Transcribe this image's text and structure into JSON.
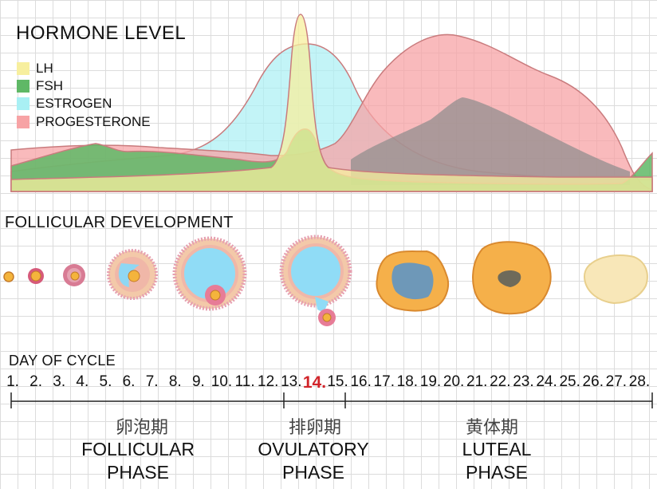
{
  "hormone_chart": {
    "title": "HORMONE LEVEL",
    "legend": [
      {
        "label": "LH",
        "color": "#f7ef9e"
      },
      {
        "label": "FSH",
        "color": "#5fb866"
      },
      {
        "label": "ESTROGEN",
        "color": "#a9f0f4"
      },
      {
        "label": "PROGESTERONE",
        "color": "#f7a3a5"
      }
    ]
  },
  "follicular_development": {
    "title": "FOLLICULAR DEVELOPMENT"
  },
  "day_of_cycle": {
    "title": "DAY OF CYCLE",
    "days": [
      "1.",
      "2.",
      "3.",
      "4.",
      "5.",
      "6.",
      "7.",
      "8.",
      "9.",
      "10.",
      "11.",
      "12.",
      "13.",
      "14.",
      "15.",
      "16.",
      "17.",
      "18.",
      "19.",
      "20.",
      "21.",
      "22.",
      "23.",
      "24.",
      "25.",
      "26.",
      "27.",
      "28."
    ],
    "highlight_day": "14."
  },
  "phases": [
    {
      "label_cn": "卵泡期",
      "label_en_line1": "FOLLICULAR",
      "label_en_line2": "PHASE"
    },
    {
      "label_cn": "排卵期",
      "label_en_line1": "OVULATORY",
      "label_en_line2": "PHASE"
    },
    {
      "label_cn": "黄体期",
      "label_en_line1": "LUTEAL",
      "label_en_line2": "PHASE"
    }
  ]
}
